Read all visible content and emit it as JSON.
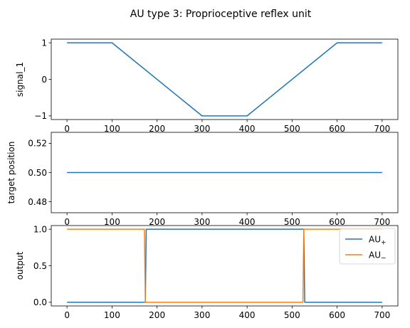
{
  "figure": {
    "title": "AU type 3: Proprioceptive reflex unit"
  },
  "chart_data": [
    {
      "type": "line",
      "ylabel": "signal_1",
      "xlabel": "",
      "xlim": [
        -35,
        735
      ],
      "ylim": [
        -1.1,
        1.1
      ],
      "xticks": [
        0,
        100,
        200,
        300,
        400,
        500,
        600,
        700
      ],
      "yticks": [
        -1,
        0,
        1
      ],
      "ytick_labels": [
        "−1",
        "0",
        "1"
      ],
      "grid": false,
      "series": [
        {
          "color": "#1f77b4",
          "x": [
            0,
            100,
            300,
            400,
            600,
            700
          ],
          "y": [
            1,
            1,
            -1,
            -1,
            1,
            1
          ]
        }
      ]
    },
    {
      "type": "line",
      "ylabel": "target position",
      "xlabel": "",
      "xlim": [
        -35,
        735
      ],
      "ylim": [
        0.4725,
        0.5275
      ],
      "xticks": [
        0,
        100,
        200,
        300,
        400,
        500,
        600,
        700
      ],
      "yticks": [
        0.48,
        0.5,
        0.52
      ],
      "ytick_labels": [
        "0.48",
        "0.50",
        "0.52"
      ],
      "grid": false,
      "series": [
        {
          "color": "#1f77b4",
          "x": [
            0,
            700
          ],
          "y": [
            0.5,
            0.5
          ]
        }
      ]
    },
    {
      "type": "line",
      "ylabel": "output",
      "xlabel": "",
      "xlim": [
        -35,
        735
      ],
      "ylim": [
        -0.05,
        1.05
      ],
      "xticks": [
        0,
        100,
        200,
        300,
        400,
        500,
        600,
        700
      ],
      "yticks": [
        0.0,
        0.5,
        1.0
      ],
      "ytick_labels": [
        "0.0",
        "0.5",
        "1.0"
      ],
      "grid": false,
      "legend": "top-right",
      "series": [
        {
          "name": "AU+",
          "legend_base": "AU",
          "legend_sub": "+",
          "color": "#1f77b4",
          "x": [
            0,
            174,
            176,
            526,
            528,
            700
          ],
          "y": [
            0,
            0,
            1,
            1,
            0,
            0
          ]
        },
        {
          "name": "AU−",
          "legend_base": "AU",
          "legend_sub": "−",
          "color": "#ff7f0e",
          "x": [
            0,
            172,
            174,
            524,
            526,
            700
          ],
          "y": [
            1,
            1,
            0,
            0,
            1,
            1
          ]
        }
      ]
    }
  ]
}
